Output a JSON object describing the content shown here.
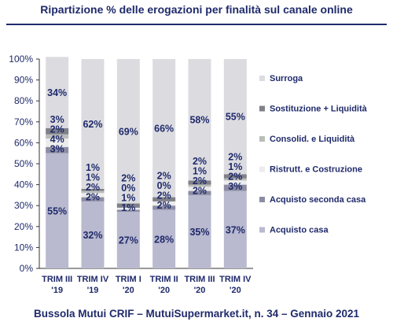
{
  "header": {
    "title": "Ripartizione % delle erogazioni per finalità sul canale online"
  },
  "footer": {
    "text": "Bussola Mutui CRIF – MutuiSupermarket.it, n. 34 – Gennaio 2021"
  },
  "colors": {
    "acquisto_casa": "#b9b9cf",
    "acquisto_seconda_casa": "#8c8ca4",
    "ristrutt_costruzione": "#ececec",
    "consolid_liquidita": "#b9bdb9",
    "sostituzione_liquidita": "#7f8088",
    "surroga": "#dcdce0",
    "text": "#1f2a6b"
  },
  "chart_data": {
    "type": "bar",
    "stacked": true,
    "categories": [
      "TRIM III '19",
      "TRIM IV '19",
      "TRIM I '20",
      "TRIM II '20",
      "TRIM III '20",
      "TRIM IV '20"
    ],
    "category_lines": [
      [
        "TRIM III",
        "'19"
      ],
      [
        "TRIM IV",
        "'19"
      ],
      [
        "TRIM I",
        "'20"
      ],
      [
        "TRIM II",
        "'20"
      ],
      [
        "TRIM III",
        "'20"
      ],
      [
        "TRIM IV",
        "'20"
      ]
    ],
    "ylim": [
      0,
      100
    ],
    "yticks": [
      "0%",
      "10%",
      "20%",
      "30%",
      "40%",
      "50%",
      "60%",
      "70%",
      "80%",
      "90%",
      "100%"
    ],
    "legend_position": "right",
    "series": [
      {
        "name": "Acquisto casa",
        "key": "acquisto_casa",
        "values": [
          55,
          32,
          27,
          28,
          35,
          37
        ],
        "labels": [
          "55%",
          "32%",
          "27%",
          "28%",
          "35%",
          "37%"
        ]
      },
      {
        "name": "Acquisto seconda casa",
        "key": "acquisto_seconda_casa",
        "values": [
          3,
          2,
          1,
          2,
          2,
          3
        ],
        "labels": [
          "3%",
          "2%",
          "1%",
          "2%",
          "2%",
          "3%"
        ]
      },
      {
        "name": "Ristrutt. e Costruzione",
        "key": "ristrutt_costruzione",
        "values": [
          4,
          2,
          1,
          2,
          2,
          2
        ],
        "labels": [
          "4%",
          "2%",
          "1%",
          "2%",
          "2%",
          "2%"
        ]
      },
      {
        "name": "Consolid. e Liquidità",
        "key": "consolid_liquidita",
        "values": [
          2,
          1,
          0,
          0,
          1,
          1
        ],
        "labels": [
          "2%",
          "1%",
          "0%",
          "0%",
          "1%",
          "1%"
        ]
      },
      {
        "name": "Sostituzione + Liquidità",
        "key": "sostituzione_liquidita",
        "values": [
          3,
          1,
          2,
          2,
          2,
          2
        ],
        "labels": [
          "3%",
          "1%",
          "2%",
          "2%",
          "2%",
          "2%"
        ]
      },
      {
        "name": "Surroga",
        "key": "surroga",
        "values": [
          34,
          62,
          69,
          66,
          58,
          55
        ],
        "labels": [
          "34%",
          "62%",
          "69%",
          "66%",
          "58%",
          "55%"
        ]
      }
    ]
  }
}
